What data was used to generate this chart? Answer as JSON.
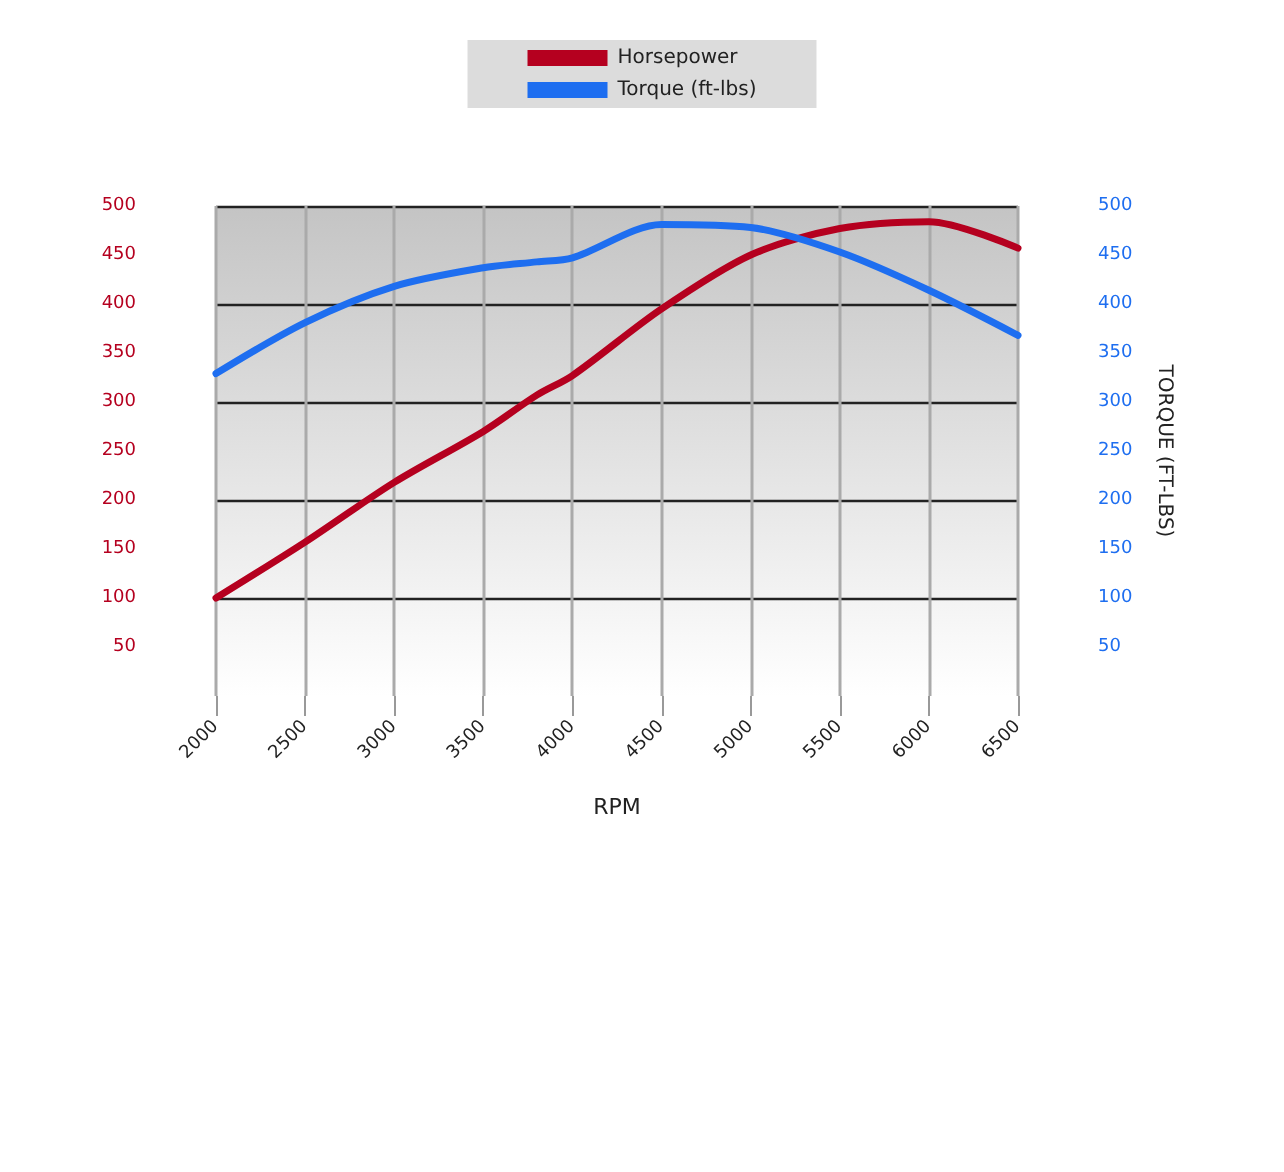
{
  "chart_data": {
    "type": "line",
    "xlabel": "RPM",
    "y2label": "TORQUE (FT-LBS)",
    "xlim": [
      2000,
      6500
    ],
    "xticks": [
      2000,
      2500,
      3000,
      3500,
      4000,
      4500,
      5000,
      5500,
      6000,
      6500
    ],
    "ylim": [
      0,
      500
    ],
    "yticks": [
      50,
      100,
      150,
      200,
      250,
      300,
      350,
      400,
      450,
      500
    ],
    "y2lim": [
      0,
      500
    ],
    "y2ticks": [
      50,
      100,
      150,
      200,
      250,
      300,
      350,
      400,
      450,
      500
    ],
    "x": [
      2000,
      2500,
      3000,
      3500,
      3800,
      4000,
      4500,
      5000,
      5500,
      6000,
      6500
    ],
    "series": [
      {
        "name": "Horsepower",
        "color": "#b5001f",
        "values": [
          100,
          157,
          218,
          270,
          307,
          327,
          395,
          450,
          477,
          484,
          457
        ]
      },
      {
        "name": "Torque (ft-lbs)",
        "color": "#1e6ef0",
        "axis": "y2",
        "values": [
          329,
          381,
          418,
          437,
          443,
          447,
          481,
          478,
          453,
          414,
          368
        ]
      }
    ],
    "grid": true,
    "legend": "top",
    "marker": "none",
    "line_style": "solid"
  }
}
